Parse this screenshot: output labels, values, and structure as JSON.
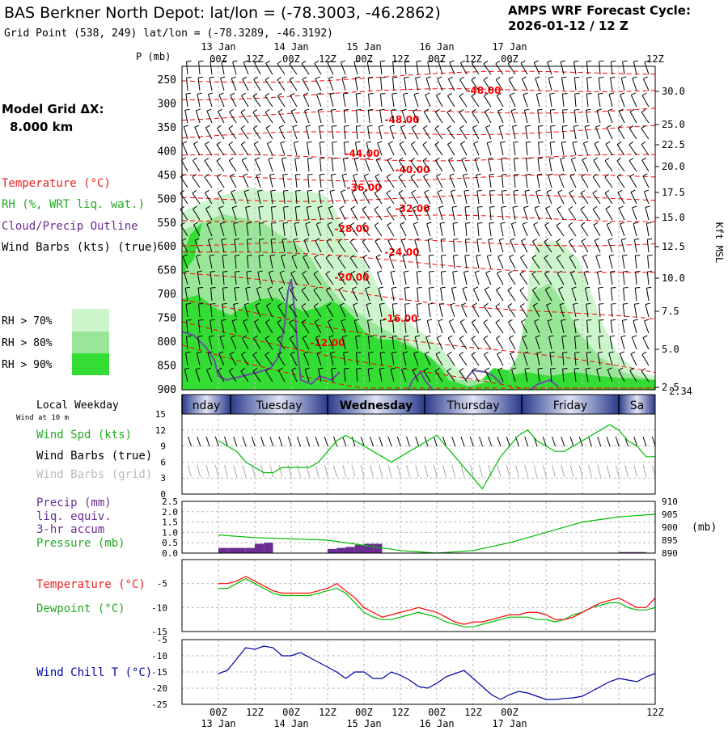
{
  "header": {
    "title": "BAS Berkner North Depot:  lat/lon = (-78.3003, -46.2862)",
    "subtitle": "Grid Point (538, 249) lat/lon = (-78.3289, -46.3192)",
    "cycle_line1": "AMPS WRF Forecast Cycle:",
    "cycle_line2": "2026-01-12 / 12  Z"
  },
  "model_grid": {
    "line1": "Model Grid ΔX:",
    "line2": "8.000 km"
  },
  "time_axis": {
    "hour_labels": [
      "00Z",
      "12Z",
      "00Z",
      "12Z",
      "00Z",
      "12Z",
      "00Z",
      "12Z",
      "00Z",
      "12Z"
    ],
    "date_labels": [
      "13 Jan",
      "14 Jan",
      "15 Jan",
      "16 Jan",
      "17 Jan"
    ]
  },
  "weekday_bar": {
    "title": "Local Weekday",
    "days": [
      "nday",
      "Tuesday",
      "Wednesday",
      "Thursday",
      "Friday",
      "Sa"
    ]
  },
  "upper_panel": {
    "p_label": "P (mb)",
    "pressure_levels": [
      250,
      300,
      350,
      400,
      450,
      500,
      550,
      600,
      650,
      700,
      750,
      800,
      850,
      900
    ],
    "kft_labels": [
      "30.0",
      "25.0",
      "22.5",
      "20.0",
      "17.5",
      "15.0",
      "12.5",
      "10.0",
      "7.5",
      "5.0",
      "2.5"
    ],
    "kft_bottom": "2.34",
    "kft_axis_label": "Kft MSL",
    "temp_contour_labels": [
      "-48.00",
      "-48.00",
      "-44.00",
      "-40.00",
      "-36.00",
      "-32.00",
      "-28.00",
      "-24.00",
      "-20.00",
      "-16.00",
      "-12.00"
    ],
    "legend": {
      "temperature": "Temperature (°C)",
      "rh": "RH (%, WRT liq. wat.)",
      "cloud": "Cloud/Precip Outline",
      "wind": "Wind Barbs (kts) (true)",
      "rh70": "RH > 70%",
      "rh80": "RH > 80%",
      "rh90": "RH > 90%"
    }
  },
  "wind_panel": {
    "wind_at": "Wind at 10 m",
    "y_ticks": [
      "15",
      "12",
      "9",
      "6",
      "3",
      "0"
    ],
    "labels": {
      "spd": "Wind Spd (kts)",
      "true": "Wind Barbs (true)",
      "grid": "Wind Barbs (grid)"
    }
  },
  "precip_panel": {
    "y_ticks": [
      "2.5",
      "2.0",
      "1.5",
      "1.0",
      "0.5",
      "0.0"
    ],
    "right_ticks": [
      "910",
      "905",
      "900",
      "895",
      "890"
    ],
    "right_unit": "(mb)",
    "labels": {
      "precip": "Precip (mm)",
      "liq": "liq. equiv.",
      "accum": "3-hr accum",
      "pressure": "Pressure (mb)"
    }
  },
  "temp_panel": {
    "y_ticks": [
      "-5",
      "-10",
      "-15"
    ],
    "labels": {
      "temp": "Temperature (°C)",
      "dew": "Dewpoint (°C)"
    }
  },
  "chill_panel": {
    "y_ticks": [
      "-5",
      "-10",
      "-15",
      "-20",
      "-25"
    ],
    "labels": {
      "chill": "Wind Chill T (°C)"
    }
  },
  "colors": {
    "temp": "#ff0000",
    "dew": "#00bb00",
    "chill": "#0000aa",
    "precip": "#6a2c91",
    "rh70": "#ccf5cc",
    "rh80": "#99e699",
    "rh90": "#33dd33",
    "cloud": "#6a4fa0"
  },
  "chart_data": [
    {
      "type": "line",
      "title": "Wind Spd (kts)",
      "x_hours": [
        0,
        3,
        6,
        9,
        12,
        15,
        18,
        21,
        24,
        27,
        30,
        33,
        36,
        39,
        42,
        45,
        48,
        51,
        54,
        57,
        60,
        63,
        66,
        69,
        72,
        75,
        78,
        81,
        84,
        87,
        90,
        93,
        96,
        99,
        102,
        105,
        108,
        111,
        114,
        117,
        120,
        123,
        126,
        129,
        132,
        135,
        138,
        141,
        144
      ],
      "series": [
        {
          "name": "Wind Spd (kts)",
          "values": [
            10,
            9,
            8,
            6,
            5,
            4,
            4,
            5,
            5,
            5,
            5,
            6,
            8,
            10,
            11,
            10,
            9,
            8,
            7,
            6,
            7,
            8,
            9,
            10,
            11,
            9,
            7,
            5,
            3,
            1,
            4,
            7,
            9,
            11,
            12,
            10,
            9,
            8,
            8,
            9,
            10,
            11,
            12,
            13,
            12,
            10,
            9,
            7,
            7
          ]
        }
      ],
      "ylim": [
        0,
        15
      ]
    },
    {
      "type": "bar",
      "title": "Precip (mm)",
      "x_hours": [
        0,
        3,
        6,
        9,
        12,
        15,
        36,
        39,
        42,
        45,
        48,
        51,
        132,
        135,
        138
      ],
      "series": [
        {
          "name": "Precip (mm)",
          "values": [
            0.25,
            0.25,
            0.25,
            0.25,
            0.45,
            0.5,
            0.2,
            0.25,
            0.3,
            0.4,
            0.45,
            0.45,
            0.05,
            0.05,
            0.05
          ]
        }
      ],
      "ylim": [
        0,
        2.5
      ]
    },
    {
      "type": "line",
      "title": "Pressure (mb)",
      "x_hours": [
        0,
        12,
        24,
        36,
        48,
        60,
        72,
        84,
        96,
        108,
        120,
        132,
        144
      ],
      "series": [
        {
          "name": "Pressure (mb)",
          "values": [
            897,
            896,
            895.5,
            895,
            893,
            891,
            890,
            891,
            894,
            898,
            902,
            904,
            905
          ]
        }
      ],
      "ylim": [
        890,
        910
      ]
    },
    {
      "type": "line",
      "title": "Temperature (°C)",
      "x_hours": [
        0,
        3,
        6,
        9,
        12,
        15,
        18,
        21,
        24,
        27,
        30,
        33,
        36,
        39,
        42,
        45,
        48,
        51,
        54,
        57,
        60,
        63,
        66,
        69,
        72,
        75,
        78,
        81,
        84,
        87,
        90,
        93,
        96,
        99,
        102,
        105,
        108,
        111,
        114,
        117,
        120,
        123,
        126,
        129,
        132,
        135,
        138,
        141,
        144
      ],
      "series": [
        {
          "name": "Temperature (°C)",
          "values": [
            -5,
            -5,
            -4.5,
            -3.5,
            -4.5,
            -5.5,
            -6.5,
            -7,
            -7,
            -7,
            -7,
            -6.5,
            -6,
            -5,
            -6.5,
            -8,
            -10,
            -11,
            -12,
            -11.5,
            -11,
            -10.5,
            -10,
            -10.5,
            -11,
            -12,
            -13,
            -13.5,
            -13,
            -13,
            -12.5,
            -12,
            -11.5,
            -11.5,
            -11,
            -11,
            -11.5,
            -12.5,
            -12.5,
            -12,
            -11,
            -10,
            -9,
            -8.5,
            -8,
            -9,
            -10,
            -10,
            -8
          ]
        },
        {
          "name": "Dewpoint (°C)",
          "values": [
            -6,
            -6,
            -5,
            -4,
            -5,
            -6,
            -7,
            -7.5,
            -7.5,
            -7.5,
            -7.5,
            -7,
            -6.5,
            -6,
            -7,
            -9,
            -11,
            -12,
            -12.5,
            -12.5,
            -12,
            -11.5,
            -11,
            -11.5,
            -12,
            -13,
            -13.5,
            -14,
            -14,
            -13.5,
            -13,
            -12.5,
            -12,
            -12,
            -12,
            -12.5,
            -12.5,
            -13,
            -12.5,
            -11.5,
            -11,
            -10,
            -9.5,
            -9,
            -9,
            -10,
            -10.5,
            -10.5,
            -10
          ]
        }
      ],
      "ylim": [
        -15,
        0
      ]
    },
    {
      "type": "line",
      "title": "Wind Chill T (°C)",
      "x_hours": [
        0,
        3,
        6,
        9,
        12,
        15,
        18,
        21,
        24,
        27,
        30,
        33,
        36,
        39,
        42,
        45,
        48,
        51,
        54,
        57,
        60,
        63,
        66,
        69,
        72,
        75,
        78,
        81,
        84,
        87,
        90,
        93,
        96,
        99,
        102,
        105,
        108,
        111,
        114,
        117,
        120,
        123,
        126,
        129,
        132,
        135,
        138,
        141,
        144
      ],
      "series": [
        {
          "name": "Wind Chill T (°C)",
          "values": [
            -15.5,
            -14.5,
            -11,
            -7.5,
            -8,
            -7,
            -7.5,
            -10,
            -10,
            -9,
            -10.5,
            -12,
            -13.5,
            -15,
            -17,
            -15,
            -15,
            -17,
            -17,
            -15,
            -16,
            -17.5,
            -19.5,
            -20,
            -18.5,
            -16.5,
            -15.5,
            -14.5,
            -17,
            -19.5,
            -22,
            -23.5,
            -22,
            -21,
            -21.5,
            -22.5,
            -23.5,
            -23.5,
            -23.2,
            -23,
            -22.5,
            -21,
            -19.5,
            -18,
            -17,
            -17.5,
            -18,
            -16.5,
            -15.5
          ]
        }
      ],
      "ylim": [
        -25,
        -5
      ]
    }
  ]
}
